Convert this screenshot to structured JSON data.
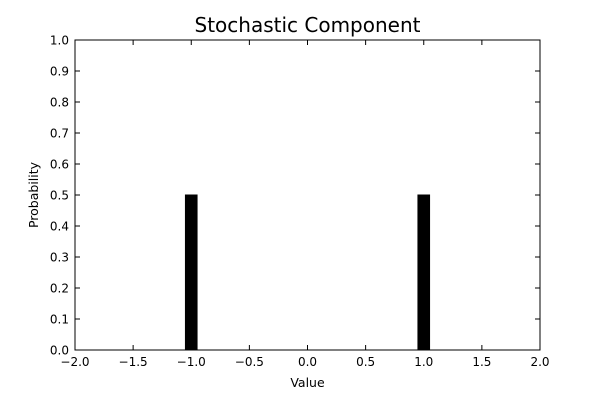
{
  "chart_data": {
    "type": "bar",
    "title": "Stochastic Component",
    "xlabel": "Value",
    "ylabel": "Probability",
    "xlim": [
      -2.0,
      2.0
    ],
    "ylim": [
      0.0,
      1.0
    ],
    "x_ticks": [
      "−2.0",
      "−1.5",
      "−1.0",
      "−0.5",
      "0.0",
      "0.5",
      "1.0",
      "1.5",
      "2.0"
    ],
    "x_tick_values": [
      -2.0,
      -1.5,
      -1.0,
      -0.5,
      0.0,
      0.5,
      1.0,
      1.5,
      2.0
    ],
    "y_ticks": [
      "0.0",
      "0.1",
      "0.2",
      "0.3",
      "0.4",
      "0.5",
      "0.6",
      "0.7",
      "0.8",
      "0.9",
      "1.0"
    ],
    "y_tick_values": [
      0.0,
      0.1,
      0.2,
      0.3,
      0.4,
      0.5,
      0.6,
      0.7,
      0.8,
      0.9,
      1.0
    ],
    "bars": [
      {
        "x": -1.0,
        "value": 0.5
      },
      {
        "x": 1.0,
        "value": 0.5
      }
    ],
    "bar_width": 0.1,
    "bar_color": "#000000",
    "grid": false
  }
}
